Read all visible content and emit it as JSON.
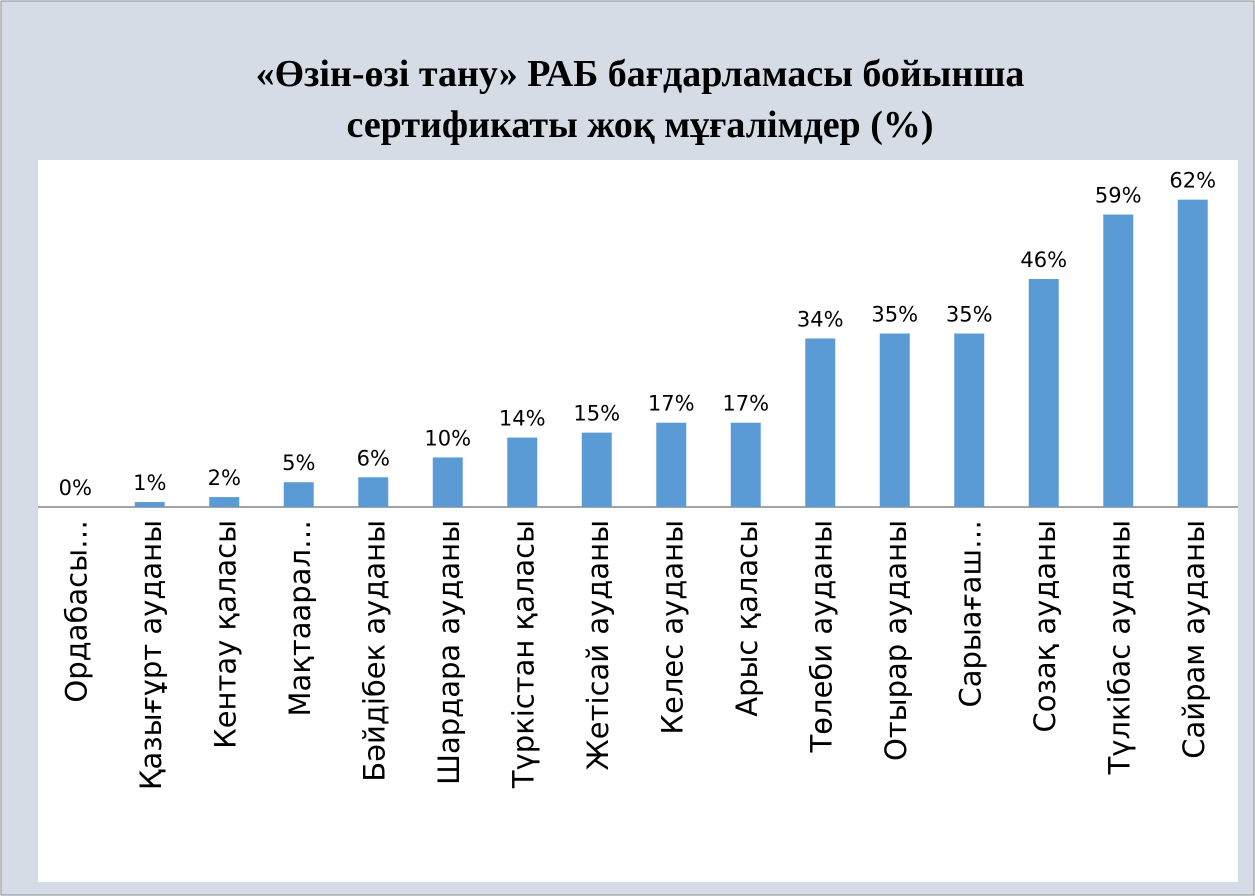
{
  "chart_data": {
    "type": "bar",
    "title": [
      "«Өзін-өзі тану» РАБ бағдарламасы бойынша",
      "сертификаты жоқ мұғалімдер (%)"
    ],
    "categories": [
      "Ордабасы…",
      "Қазығұрт ауданы",
      "Кентау қаласы",
      "Мақтаарал…",
      "Бәйдібек ауданы",
      "Шардара ауданы",
      "Түркістан қаласы",
      "Жетісай ауданы",
      "Келес ауданы",
      "Арыс қаласы",
      "Төлеби ауданы",
      "Отырар ауданы",
      "Сарыағаш…",
      "Созақ ауданы",
      "Түлкібас ауданы",
      "Сайрам ауданы"
    ],
    "values": [
      0,
      1,
      2,
      5,
      6,
      10,
      14,
      15,
      17,
      17,
      34,
      35,
      35,
      46,
      59,
      62
    ],
    "value_labels": [
      "0%",
      "1%",
      "2%",
      "5%",
      "6%",
      "10%",
      "14%",
      "15%",
      "17%",
      "17%",
      "34%",
      "35%",
      "35%",
      "46%",
      "59%",
      "62%"
    ],
    "color": "#5b9bd5",
    "ylim": [
      0,
      70
    ]
  }
}
